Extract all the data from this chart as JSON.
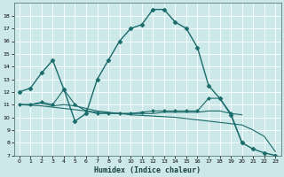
{
  "xlabel": "Humidex (Indice chaleur)",
  "background_color": "#cce8e8",
  "line_color": "#1a6b6b",
  "grid_color": "#ffffff",
  "xlim": [
    -0.5,
    23.5
  ],
  "ylim": [
    7,
    19
  ],
  "yticks": [
    7,
    8,
    9,
    10,
    11,
    12,
    13,
    14,
    15,
    16,
    17,
    18
  ],
  "xticks": [
    0,
    1,
    2,
    3,
    4,
    5,
    6,
    7,
    8,
    9,
    10,
    11,
    12,
    13,
    14,
    15,
    16,
    17,
    18,
    19,
    20,
    21,
    22,
    23
  ],
  "series": [
    {
      "x": [
        0,
        1,
        2,
        3,
        4,
        5,
        6,
        7,
        8,
        9,
        10,
        11,
        12,
        13,
        14,
        15,
        16,
        17,
        18,
        19,
        20,
        21,
        22,
        23
      ],
      "y": [
        12.0,
        12.3,
        13.5,
        14.5,
        12.2,
        9.7,
        10.3,
        13.0,
        14.5,
        16.0,
        17.0,
        17.3,
        18.5,
        18.5,
        17.5,
        17.0,
        15.5,
        12.5,
        11.5,
        10.2,
        8.0,
        7.5,
        7.2,
        7.0
      ],
      "marker": "D",
      "ms": 2.5,
      "lw": 1.0
    },
    {
      "x": [
        0,
        1,
        2,
        3,
        4,
        5,
        6,
        7,
        8,
        9,
        10,
        11,
        12,
        13,
        14,
        15,
        16,
        17,
        18,
        19,
        20
      ],
      "y": [
        11.0,
        11.0,
        11.2,
        11.0,
        12.2,
        11.0,
        10.5,
        10.3,
        10.3,
        10.3,
        10.3,
        10.4,
        10.5,
        10.5,
        10.5,
        10.5,
        10.5,
        11.5,
        11.5,
        10.3,
        8.0
      ],
      "marker": "D",
      "ms": 2.0,
      "lw": 0.8
    },
    {
      "x": [
        0,
        1,
        2,
        3,
        4,
        5,
        6,
        7,
        8,
        9,
        10,
        11,
        12,
        13,
        14,
        15,
        16,
        17,
        18,
        19,
        20
      ],
      "y": [
        11.0,
        11.0,
        11.1,
        10.9,
        11.0,
        10.9,
        10.7,
        10.5,
        10.4,
        10.3,
        10.3,
        10.3,
        10.3,
        10.4,
        10.4,
        10.4,
        10.4,
        10.5,
        10.5,
        10.3,
        10.2
      ],
      "marker": null,
      "ms": 0,
      "lw": 0.8
    },
    {
      "x": [
        0,
        1,
        2,
        3,
        4,
        5,
        6,
        7,
        8,
        9,
        10,
        11,
        12,
        13,
        14,
        15,
        16,
        17,
        18,
        19,
        20,
        21,
        22,
        23
      ],
      "y": [
        11.0,
        10.95,
        10.9,
        10.8,
        10.7,
        10.6,
        10.5,
        10.4,
        10.35,
        10.3,
        10.2,
        10.15,
        10.1,
        10.05,
        10.0,
        9.9,
        9.8,
        9.7,
        9.6,
        9.5,
        9.4,
        9.0,
        8.5,
        7.3
      ],
      "marker": null,
      "ms": 0,
      "lw": 0.8
    }
  ]
}
